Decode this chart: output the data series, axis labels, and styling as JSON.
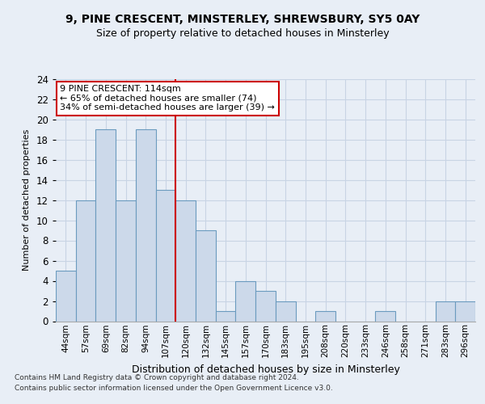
{
  "title1": "9, PINE CRESCENT, MINSTERLEY, SHREWSBURY, SY5 0AY",
  "title2": "Size of property relative to detached houses in Minsterley",
  "xlabel": "Distribution of detached houses by size in Minsterley",
  "ylabel": "Number of detached properties",
  "categories": [
    "44sqm",
    "57sqm",
    "69sqm",
    "82sqm",
    "94sqm",
    "107sqm",
    "120sqm",
    "132sqm",
    "145sqm",
    "157sqm",
    "170sqm",
    "183sqm",
    "195sqm",
    "208sqm",
    "220sqm",
    "233sqm",
    "246sqm",
    "258sqm",
    "271sqm",
    "283sqm",
    "296sqm"
  ],
  "values": [
    5,
    12,
    19,
    12,
    19,
    13,
    12,
    9,
    1,
    4,
    3,
    2,
    0,
    1,
    0,
    0,
    1,
    0,
    0,
    2,
    2
  ],
  "bar_color": "#ccd9ea",
  "bar_edge_color": "#6b9bbf",
  "annotation_text": "9 PINE CRESCENT: 114sqm\n← 65% of detached houses are smaller (74)\n34% of semi-detached houses are larger (39) →",
  "annotation_box_color": "#ffffff",
  "annotation_box_edge": "#cc0000",
  "ylim": [
    0,
    24
  ],
  "yticks": [
    0,
    2,
    4,
    6,
    8,
    10,
    12,
    14,
    16,
    18,
    20,
    22,
    24
  ],
  "grid_color": "#c8d4e4",
  "footer1": "Contains HM Land Registry data © Crown copyright and database right 2024.",
  "footer2": "Contains public sector information licensed under the Open Government Licence v3.0.",
  "bg_color": "#e8eef6",
  "plot_bg_color": "#e8eef6"
}
